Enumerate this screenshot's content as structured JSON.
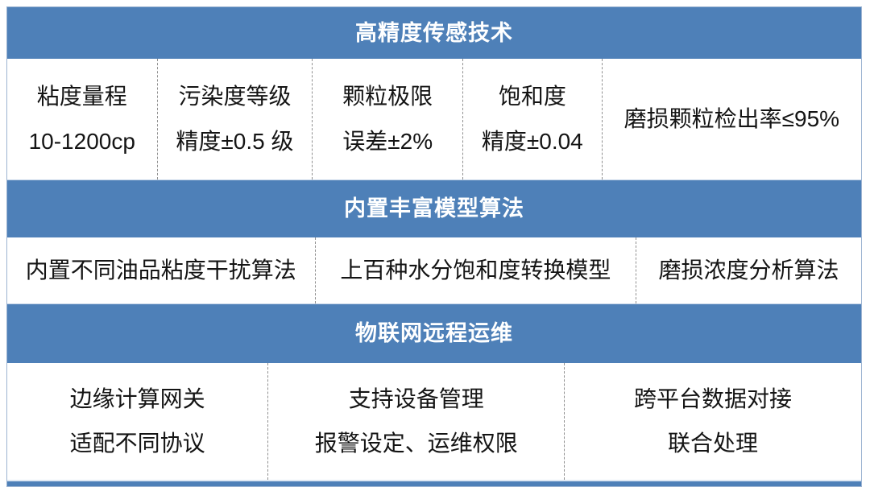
{
  "colors": {
    "header_bg": "#4E80B8",
    "header_text": "#FFFFFF",
    "body_text": "#141414",
    "cell_divider": "#909090",
    "outer_border": "#9DB4D2"
  },
  "table": {
    "sections": [
      {
        "header": "高精度传感技术",
        "cells": [
          {
            "lines": [
              "粘度量程",
              "10-1200cp"
            ]
          },
          {
            "lines": [
              "污染度等级",
              "精度±0.5 级"
            ]
          },
          {
            "lines": [
              "颗粒极限",
              "误差±2%"
            ]
          },
          {
            "lines": [
              "饱和度",
              "精度±0.04"
            ]
          },
          {
            "lines": [
              "磨损颗粒检出率≤95%"
            ]
          }
        ]
      },
      {
        "header": "内置丰富模型算法",
        "cells": [
          {
            "lines": [
              "内置不同油品粘度干扰算法"
            ]
          },
          {
            "lines": [
              "上百种水分饱和度转换模型"
            ]
          },
          {
            "lines": [
              "磨损浓度分析算法"
            ]
          }
        ]
      },
      {
        "header": "物联网远程运维",
        "cells": [
          {
            "lines": [
              "边缘计算网关",
              "适配不同协议"
            ]
          },
          {
            "lines": [
              "支持设备管理",
              "报警设定、运维权限"
            ]
          },
          {
            "lines": [
              "跨平台数据对接",
              "联合处理"
            ]
          }
        ]
      }
    ]
  }
}
